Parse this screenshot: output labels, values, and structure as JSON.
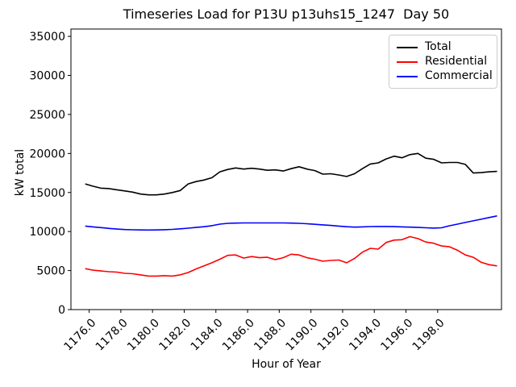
{
  "chart_data": {
    "type": "line",
    "title": "Timeseries Load for P13U p13uhs15_1247  Day 50",
    "xlabel": "Hour of Year",
    "ylabel": "kW total",
    "grid": false,
    "legend_position": "upper right",
    "background_color": "#ffffff",
    "x_tick_labels": [
      "1176.0",
      "1178.0",
      "1180.0",
      "1182.0",
      "1184.0",
      "1186.0",
      "1188.0",
      "1190.0",
      "1192.0",
      "1194.0",
      "1196.0",
      "1198.0"
    ],
    "y_ticks": [
      0,
      5000,
      10000,
      15000,
      20000,
      25000,
      30000,
      35000
    ],
    "xlim": [
      1174.85,
      1202.03
    ],
    "ylim": [
      0,
      35940
    ],
    "x": [
      1175.75,
      1176.25,
      1176.75,
      1177.25,
      1177.75,
      1178.25,
      1178.75,
      1179.25,
      1179.75,
      1180.25,
      1180.75,
      1181.25,
      1181.75,
      1182.25,
      1182.75,
      1183.25,
      1183.75,
      1184.25,
      1184.75,
      1185.25,
      1185.75,
      1186.25,
      1186.75,
      1187.25,
      1187.75,
      1188.25,
      1188.75,
      1189.25,
      1189.75,
      1190.25,
      1190.75,
      1191.25,
      1191.75,
      1192.25,
      1192.75,
      1193.25,
      1193.75,
      1194.25,
      1194.75,
      1195.25,
      1195.75,
      1196.25,
      1196.75,
      1197.25,
      1197.75,
      1198.25,
      1198.75,
      1199.25,
      1199.75,
      1200.25,
      1200.75,
      1201.25,
      1201.75
    ],
    "series": [
      {
        "name": "Total",
        "color": "#000000",
        "values": [
          16100,
          15800,
          15550,
          15500,
          15350,
          15200,
          15050,
          14800,
          14700,
          14700,
          14800,
          15000,
          15250,
          16100,
          16400,
          16600,
          16900,
          17650,
          17950,
          18150,
          18000,
          18100,
          18000,
          17850,
          17900,
          17750,
          18050,
          18300,
          18000,
          17800,
          17350,
          17400,
          17250,
          17050,
          17400,
          18050,
          18650,
          18800,
          19300,
          19650,
          19450,
          19850,
          20000,
          19400,
          19250,
          18800,
          18850,
          18850,
          18600,
          17500,
          17550,
          17650,
          17700
        ]
      },
      {
        "name": "Residential",
        "color": "#ff0000",
        "values": [
          5250,
          5050,
          4950,
          4850,
          4800,
          4650,
          4600,
          4450,
          4300,
          4300,
          4350,
          4300,
          4450,
          4750,
          5200,
          5600,
          6000,
          6450,
          6950,
          7000,
          6600,
          6800,
          6650,
          6700,
          6400,
          6650,
          7100,
          7000,
          6650,
          6450,
          6200,
          6300,
          6350,
          6000,
          6550,
          7350,
          7850,
          7750,
          8600,
          8900,
          8950,
          9350,
          9100,
          8650,
          8500,
          8150,
          8050,
          7600,
          7000,
          6700,
          6050,
          5750,
          5600
        ]
      },
      {
        "name": "Commercial",
        "color": "#0000ff",
        "values": [
          10700,
          10600,
          10500,
          10400,
          10320,
          10260,
          10220,
          10200,
          10190,
          10200,
          10230,
          10280,
          10350,
          10430,
          10520,
          10620,
          10750,
          10950,
          11050,
          11080,
          11100,
          11100,
          11100,
          11100,
          11100,
          11100,
          11080,
          11050,
          11000,
          10930,
          10850,
          10780,
          10700,
          10620,
          10570,
          10600,
          10640,
          10650,
          10650,
          10630,
          10600,
          10560,
          10520,
          10480,
          10440,
          10480,
          10740,
          10950,
          11160,
          11370,
          11580,
          11790,
          12000
        ]
      }
    ]
  }
}
